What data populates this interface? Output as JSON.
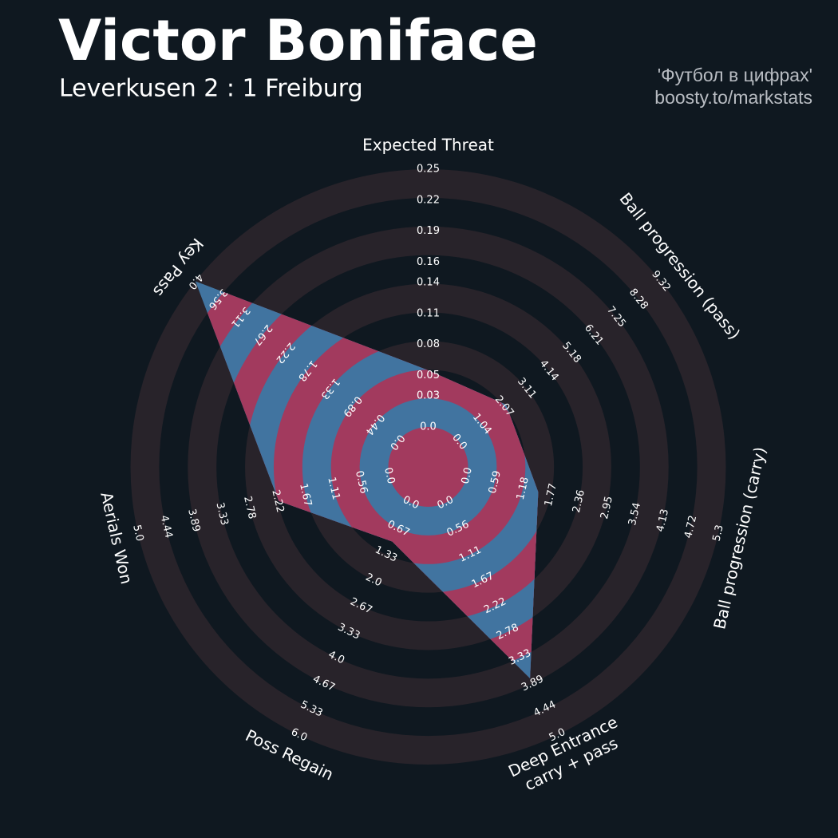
{
  "chart_data": {
    "type": "radar",
    "title": "Victor Boniface",
    "subtitle": "Leverkusen 2 : 1 Freiburg",
    "credits": [
      "'Футбол в цифрах'",
      "boosty.to/markstats"
    ],
    "params": [
      {
        "name": "Expected Threat",
        "lim": [
          0,
          0.25
        ],
        "ticks": [
          {
            "value": 0,
            "label": "0.0"
          },
          0.03,
          0.05,
          0.08,
          0.11,
          0.14,
          0.16,
          0.19,
          0.22,
          0.25
        ]
      },
      {
        "name": "Ball progression (pass)",
        "lim": [
          0,
          9.32
        ],
        "ticks": [
          {
            "value": 0,
            "label": "0.0"
          },
          1.04,
          2.07,
          3.11,
          4.14,
          5.18,
          6.21,
          7.25,
          8.28,
          9.32
        ]
      },
      {
        "name": "Ball progression (carry)",
        "lim": [
          0,
          5.3
        ],
        "ticks": [
          {
            "value": 0,
            "label": "0.0"
          },
          0.59,
          1.18,
          1.77,
          2.36,
          2.95,
          3.54,
          4.13,
          4.72,
          5.3
        ]
      },
      {
        "name": "Deep Entrance\ncarry + pass",
        "lim": [
          0,
          5
        ],
        "ticks": [
          {
            "value": 0,
            "label": "0.0"
          },
          0.56,
          1.11,
          1.67,
          2.22,
          2.78,
          3.33,
          3.89,
          4.44,
          {
            "value": 5,
            "label": "5.0"
          }
        ]
      },
      {
        "name": "Poss Regain",
        "lim": [
          0,
          6
        ],
        "ticks": [
          {
            "value": 0,
            "label": "0.0"
          },
          0.67,
          1.33,
          {
            "value": 2,
            "label": "2.0"
          },
          2.67,
          3.33,
          {
            "value": 4,
            "label": "4.0"
          },
          4.67,
          5.33,
          {
            "value": 6,
            "label": "6.0"
          }
        ]
      },
      {
        "name": "Aerials Won",
        "lim": [
          0,
          5
        ],
        "ticks": [
          {
            "value": 0,
            "label": "0.0"
          },
          0.56,
          1.11,
          1.67,
          2.22,
          2.78,
          3.33,
          3.89,
          4.44,
          {
            "value": 5,
            "label": "5.0"
          }
        ]
      },
      {
        "name": "Key Pass",
        "lim": [
          0,
          4
        ],
        "ticks": [
          {
            "value": 0,
            "label": "0.0"
          },
          0.44,
          0.89,
          1.33,
          1.78,
          2.22,
          2.67,
          3.11,
          3.56,
          {
            "value": 4,
            "label": "4.0"
          }
        ]
      }
    ],
    "values": [
      0.055,
      2.16,
      1.5,
      3.78,
      1.0,
      2.2,
      4.0
    ],
    "colors": {
      "background": "#0f1820",
      "ring": "#28232a",
      "fill": "#4174a0",
      "fill_alt": "#a23a5e"
    }
  }
}
